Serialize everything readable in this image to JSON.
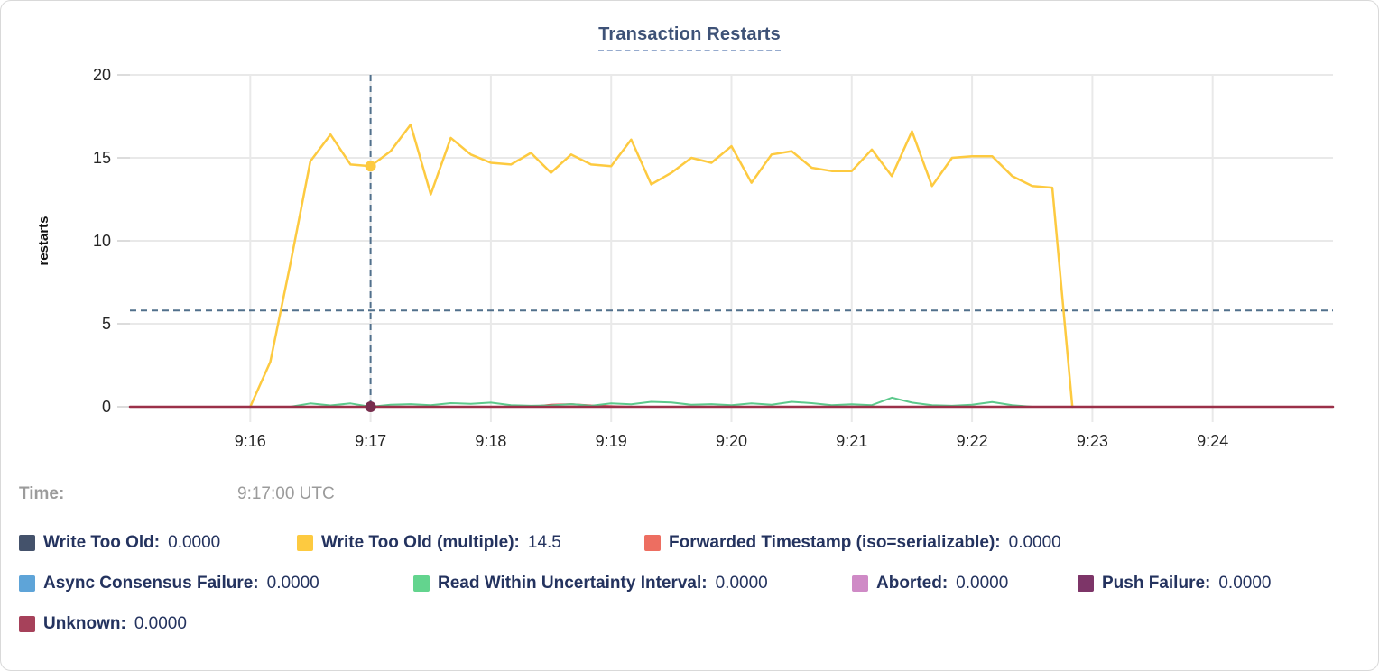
{
  "chart": {
    "title": "Transaction Restarts"
  },
  "hover": {
    "time_label": "Time:",
    "time_value": "9:17:00 UTC",
    "x_time": "9:17:00",
    "crosshair_value": 5.8,
    "dots": [
      {
        "series": "Write Too Old (multiple)",
        "time": "9:17:00",
        "value": 14.5,
        "color": "#fdca40",
        "dot_color": "#fdca40"
      },
      {
        "series": "Unknown",
        "time": "9:17:00",
        "value": 0,
        "color": "#a03b52",
        "dot_color": "#772e4e"
      }
    ]
  },
  "legend": {
    "rows": [
      [
        {
          "key": "write-too-old",
          "label": "Write Too Old:",
          "value": "0.0000",
          "color": "#44526b"
        },
        {
          "key": "write-too-old-multiple",
          "label": "Write Too Old (multiple):",
          "value": "14.5",
          "color": "#fdca40"
        },
        {
          "key": "forwarded-timestamp",
          "label": "Forwarded Timestamp (iso=serializable):",
          "value": "0.0000",
          "color": "#ed6e61"
        }
      ],
      [
        {
          "key": "async-consensus-failure",
          "label": "Async Consensus Failure:",
          "value": "0.0000",
          "color": "#5ea4d8"
        },
        {
          "key": "read-within-uncertainty-interval",
          "label": "Read Within Uncertainty Interval:",
          "value": "0.0000",
          "color": "#63d48e"
        },
        {
          "key": "aborted",
          "label": "Aborted:",
          "value": "0.0000",
          "color": "#cf8ac6"
        },
        {
          "key": "push-failure",
          "label": "Push Failure:",
          "value": "0.0000",
          "color": "#7d3568"
        }
      ],
      [
        {
          "key": "unknown",
          "label": "Unknown:",
          "value": "0.0000",
          "color": "#a6415a"
        }
      ]
    ]
  },
  "chart_data": {
    "type": "line",
    "title": "Transaction Restarts",
    "xlabel": "",
    "ylabel": "restarts",
    "x_domain": [
      "9:15:00",
      "9:25:00"
    ],
    "y_domain": [
      0,
      20
    ],
    "y_ticks": [
      0,
      5,
      10,
      15,
      20
    ],
    "x_ticks": [
      {
        "t": "9:16:00",
        "label": "9:16"
      },
      {
        "t": "9:17:00",
        "label": "9:17"
      },
      {
        "t": "9:18:00",
        "label": "9:18"
      },
      {
        "t": "9:19:00",
        "label": "9:19"
      },
      {
        "t": "9:20:00",
        "label": "9:20"
      },
      {
        "t": "9:21:00",
        "label": "9:21"
      },
      {
        "t": "9:22:00",
        "label": "9:22"
      },
      {
        "t": "9:23:00",
        "label": "9:23"
      },
      {
        "t": "9:24:00",
        "label": "9:24"
      }
    ],
    "grid": true,
    "legend_position": "bottom",
    "series": [
      {
        "name": "Write Too Old",
        "key": "write-too-old",
        "color": "#44526b",
        "width": 2,
        "points": [
          [
            "9:15:00",
            0
          ],
          [
            "9:25:00",
            0
          ]
        ]
      },
      {
        "name": "Forwarded Timestamp (iso=serializable)",
        "key": "forwarded-timestamp",
        "color": "#e0434f",
        "width": 2,
        "points": [
          [
            "9:16:00",
            0
          ],
          [
            "9:18:20",
            0
          ],
          [
            "9:18:30",
            0.12
          ],
          [
            "9:18:40",
            0.16
          ],
          [
            "9:18:50",
            0.08
          ],
          [
            "9:19:00",
            0.03
          ],
          [
            "9:19:10",
            0
          ],
          [
            "9:22:50",
            0
          ]
        ]
      },
      {
        "name": "Async Consensus Failure",
        "key": "async-consensus-failure",
        "color": "#5ea4d8",
        "width": 2,
        "points": [
          [
            "9:15:00",
            0
          ],
          [
            "9:25:00",
            0
          ]
        ]
      },
      {
        "name": "Aborted",
        "key": "aborted",
        "color": "#cf8ac6",
        "width": 2,
        "points": [
          [
            "9:15:00",
            0
          ],
          [
            "9:25:00",
            0
          ]
        ]
      },
      {
        "name": "Push Failure",
        "key": "push-failure",
        "color": "#7d3568",
        "width": 2,
        "points": [
          [
            "9:15:00",
            0
          ],
          [
            "9:25:00",
            0
          ]
        ]
      },
      {
        "name": "Read Within Uncertainty Interval",
        "key": "read-within-uncertainty-interval",
        "color": "#5dc98c",
        "width": 2,
        "points": [
          [
            "9:16:20",
            0
          ],
          [
            "9:16:30",
            0.2
          ],
          [
            "9:16:40",
            0.08
          ],
          [
            "9:16:50",
            0.2
          ],
          [
            "9:17:00",
            0
          ],
          [
            "9:17:10",
            0.12
          ],
          [
            "9:17:20",
            0.16
          ],
          [
            "9:17:30",
            0.1
          ],
          [
            "9:17:40",
            0.22
          ],
          [
            "9:17:50",
            0.18
          ],
          [
            "9:18:00",
            0.25
          ],
          [
            "9:18:10",
            0.1
          ],
          [
            "9:18:20",
            0.06
          ],
          [
            "9:18:30",
            0.08
          ],
          [
            "9:18:40",
            0.16
          ],
          [
            "9:18:50",
            0.06
          ],
          [
            "9:19:00",
            0.2
          ],
          [
            "9:19:10",
            0.15
          ],
          [
            "9:19:20",
            0.3
          ],
          [
            "9:19:30",
            0.26
          ],
          [
            "9:19:40",
            0.12
          ],
          [
            "9:19:50",
            0.16
          ],
          [
            "9:20:00",
            0.1
          ],
          [
            "9:20:10",
            0.2
          ],
          [
            "9:20:20",
            0.12
          ],
          [
            "9:20:30",
            0.3
          ],
          [
            "9:20:40",
            0.22
          ],
          [
            "9:20:50",
            0.1
          ],
          [
            "9:21:00",
            0.15
          ],
          [
            "9:21:10",
            0.1
          ],
          [
            "9:21:20",
            0.55
          ],
          [
            "9:21:30",
            0.25
          ],
          [
            "9:21:40",
            0.1
          ],
          [
            "9:21:50",
            0.06
          ],
          [
            "9:22:00",
            0.12
          ],
          [
            "9:22:10",
            0.28
          ],
          [
            "9:22:20",
            0.1
          ],
          [
            "9:22:30",
            0
          ]
        ]
      },
      {
        "name": "Write Too Old (multiple)",
        "key": "write-too-old-multiple",
        "color": "#fdca40",
        "width": 2.5,
        "points": [
          [
            "9:16:00",
            0
          ],
          [
            "9:16:10",
            2.7
          ],
          [
            "9:16:20",
            8.6
          ],
          [
            "9:16:30",
            14.8
          ],
          [
            "9:16:40",
            16.4
          ],
          [
            "9:16:50",
            14.6
          ],
          [
            "9:17:00",
            14.5
          ],
          [
            "9:17:10",
            15.4
          ],
          [
            "9:17:20",
            17.0
          ],
          [
            "9:17:30",
            12.8
          ],
          [
            "9:17:40",
            16.2
          ],
          [
            "9:17:50",
            15.2
          ],
          [
            "9:18:00",
            14.7
          ],
          [
            "9:18:10",
            14.6
          ],
          [
            "9:18:20",
            15.3
          ],
          [
            "9:18:30",
            14.1
          ],
          [
            "9:18:40",
            15.2
          ],
          [
            "9:18:50",
            14.6
          ],
          [
            "9:19:00",
            14.5
          ],
          [
            "9:19:10",
            16.1
          ],
          [
            "9:19:20",
            13.4
          ],
          [
            "9:19:30",
            14.1
          ],
          [
            "9:19:40",
            15.0
          ],
          [
            "9:19:50",
            14.7
          ],
          [
            "9:20:00",
            15.7
          ],
          [
            "9:20:10",
            13.5
          ],
          [
            "9:20:20",
            15.2
          ],
          [
            "9:20:30",
            15.4
          ],
          [
            "9:20:40",
            14.4
          ],
          [
            "9:20:50",
            14.2
          ],
          [
            "9:21:00",
            14.2
          ],
          [
            "9:21:10",
            15.5
          ],
          [
            "9:21:20",
            13.9
          ],
          [
            "9:21:30",
            16.6
          ],
          [
            "9:21:40",
            13.3
          ],
          [
            "9:21:50",
            15.0
          ],
          [
            "9:22:00",
            15.1
          ],
          [
            "9:22:10",
            15.1
          ],
          [
            "9:22:20",
            13.9
          ],
          [
            "9:22:30",
            13.3
          ],
          [
            "9:22:40",
            13.2
          ],
          [
            "9:22:50",
            0
          ]
        ]
      },
      {
        "name": "Unknown",
        "key": "unknown",
        "color": "#9b3049",
        "width": 2.5,
        "points": [
          [
            "9:15:00",
            0
          ],
          [
            "9:25:00",
            0
          ]
        ]
      }
    ]
  },
  "colors": {
    "title_text": "#3e5277",
    "legend_text": "#24335f",
    "muted_text": "#9b9b9b",
    "axis_text": "#262626",
    "grid": "#e9e9e9",
    "crosshair": "#51708c"
  }
}
